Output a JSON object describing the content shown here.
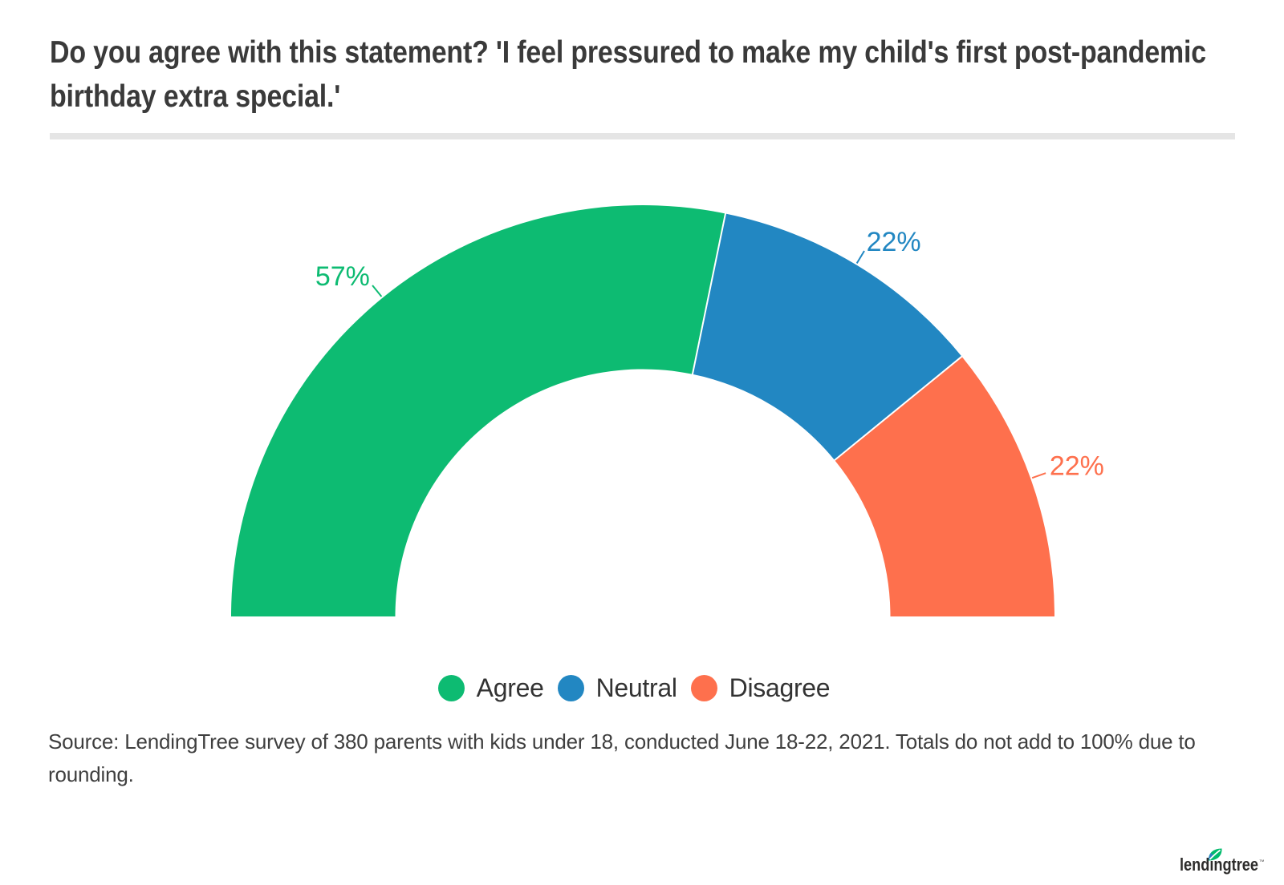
{
  "title": "Do you agree with this statement? 'I feel pressured to make my child's first post-pandemic birthday extra special.'",
  "chart_data": {
    "type": "pie",
    "subtype": "half-donut",
    "categories": [
      "Agree",
      "Neutral",
      "Disagree"
    ],
    "values": [
      57,
      22,
      22
    ],
    "unit": "%",
    "labels": [
      "57%",
      "22%",
      "22%"
    ],
    "colors": [
      "#0dbb72",
      "#2287c2",
      "#fe704d"
    ],
    "start_angle_deg": 180,
    "end_angle_deg": 0,
    "legend_position": "bottom"
  },
  "legend": {
    "items": [
      {
        "label": "Agree",
        "color": "#0dbb72"
      },
      {
        "label": "Neutral",
        "color": "#2287c2"
      },
      {
        "label": "Disagree",
        "color": "#fe704d"
      }
    ]
  },
  "source_note": "Source: LendingTree survey of 380 parents with kids under 18, conducted June 18-22, 2021. Totals do not add to 100% due to rounding.",
  "logo": {
    "text": "lendingtree",
    "trademark": "™",
    "leaf_green": "#00ba6c",
    "leaf_blue": "#2e7ec2",
    "text_color": "#2d2c2b"
  }
}
